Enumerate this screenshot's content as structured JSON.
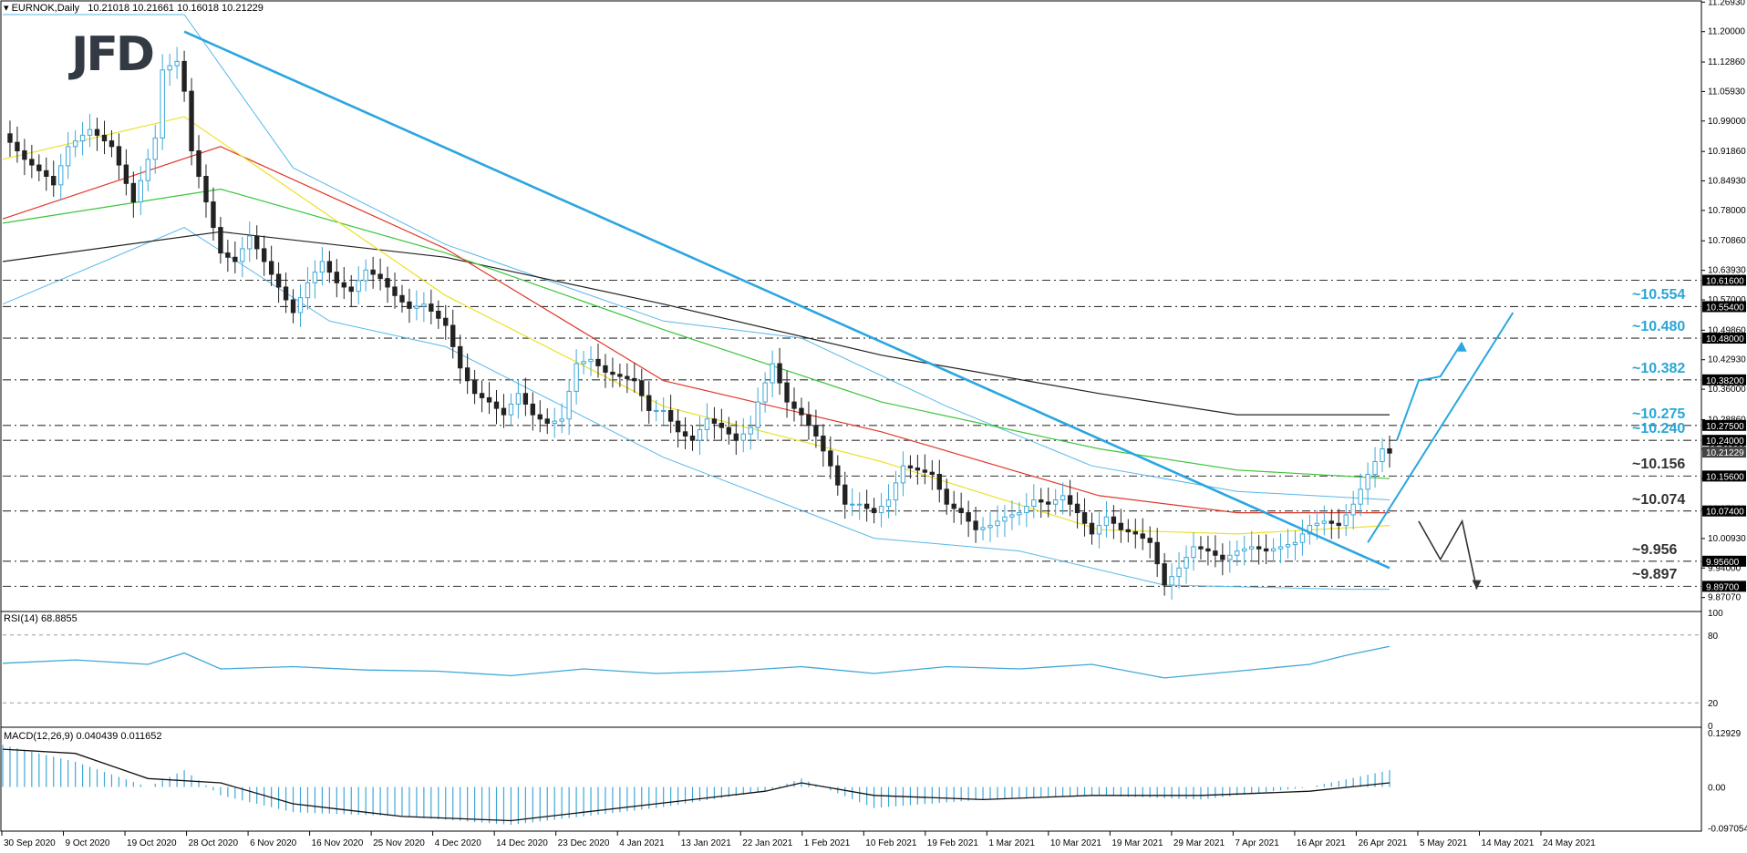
{
  "header": {
    "symbol": "EURNOK,Daily",
    "ohlc": "10.21018 10.21661 10.16018 10.21229",
    "logo": "JFD"
  },
  "rsi_panel": {
    "label": "RSI(14) 68.8855"
  },
  "macd_panel": {
    "label": "MACD(12,26,9) 0.040439 0.011652"
  },
  "level_labels": [
    {
      "text": "~10.554",
      "price": 10.554,
      "color": "#2aa6d6"
    },
    {
      "text": "~10.480",
      "price": 10.48,
      "color": "#2aa6d6"
    },
    {
      "text": "~10.382",
      "price": 10.382,
      "color": "#2aa6d6"
    },
    {
      "text": "~10.275",
      "price": 10.275,
      "color": "#2aa6d6"
    },
    {
      "text": "~10.240",
      "price": 10.24,
      "color": "#2aa6d6"
    },
    {
      "text": "~10.156",
      "price": 10.156,
      "color": "#333333"
    },
    {
      "text": "~10.074",
      "price": 10.074,
      "color": "#333333"
    },
    {
      "text": "~9.956",
      "price": 9.956,
      "color": "#333333"
    },
    {
      "text": "~9.897",
      "price": 9.897,
      "color": "#333333"
    }
  ],
  "chart_data": {
    "type": "line",
    "title": "EURNOK,Daily",
    "ohlc_last": {
      "open": 10.21018,
      "high": 10.21661,
      "low": 10.16018,
      "close": 10.21229
    },
    "price_axis": {
      "ylim": [
        9.84,
        11.27
      ],
      "ticks": [
        "11.26930",
        "11.20000",
        "11.12860",
        "11.05930",
        "10.99000",
        "10.91860",
        "10.84930",
        "10.78000",
        "10.70860",
        "10.63930",
        "10.57000",
        "10.49860",
        "10.42930",
        "10.36000",
        "10.28860",
        "10.21930",
        "10.15000",
        "10.07860",
        "10.00930",
        "9.94000",
        "9.87070"
      ],
      "tick_values": [
        11.2693,
        11.2,
        11.1286,
        11.0593,
        10.99,
        10.9186,
        10.8493,
        10.78,
        10.7086,
        10.6393,
        10.57,
        10.4986,
        10.4293,
        10.36,
        10.2886,
        10.2193,
        10.15,
        10.0786,
        10.0093,
        9.94,
        9.8707
      ]
    },
    "price_flags": [
      {
        "text": "10.61600",
        "value": 10.616,
        "dark": true
      },
      {
        "text": "10.55400",
        "value": 10.554,
        "dark": true
      },
      {
        "text": "10.48000",
        "value": 10.48,
        "dark": true
      },
      {
        "text": "10.38200",
        "value": 10.382,
        "dark": true
      },
      {
        "text": "10.27500",
        "value": 10.275,
        "dark": true
      },
      {
        "text": "10.24000",
        "value": 10.24,
        "dark": true
      },
      {
        "text": "10.21229",
        "value": 10.21229,
        "dark": false
      },
      {
        "text": "10.15600",
        "value": 10.156,
        "dark": true
      },
      {
        "text": "10.07400",
        "value": 10.074,
        "dark": true
      },
      {
        "text": "9.95600",
        "value": 9.956,
        "dark": true
      },
      {
        "text": "9.89700",
        "value": 9.897,
        "dark": true
      }
    ],
    "horizontal_levels": [
      10.616,
      10.554,
      10.48,
      10.382,
      10.275,
      10.24,
      10.156,
      10.074,
      9.956,
      9.897
    ],
    "x_labels": [
      "30 Sep 2020",
      "9 Oct 2020",
      "19 Oct 2020",
      "28 Oct 2020",
      "6 Nov 2020",
      "16 Nov 2020",
      "25 Nov 2020",
      "4 Dec 2020",
      "14 Dec 2020",
      "23 Dec 2020",
      "4 Jan 2021",
      "13 Jan 2021",
      "22 Jan 2021",
      "1 Feb 2021",
      "10 Feb 2021",
      "19 Feb 2021",
      "1 Mar 2021",
      "10 Mar 2021",
      "19 Mar 2021",
      "29 Mar 2021",
      "7 Apr 2021",
      "16 Apr 2021",
      "26 Apr 2021",
      "5 May 2021",
      "14 May 2021",
      "24 May 2021"
    ],
    "close_path": [
      [
        0,
        10.96
      ],
      [
        3,
        10.9
      ],
      [
        6,
        10.86
      ],
      [
        7,
        10.84
      ],
      [
        9,
        10.93
      ],
      [
        12,
        10.97
      ],
      [
        15,
        10.93
      ],
      [
        18,
        10.8
      ],
      [
        21,
        10.95
      ],
      [
        22,
        11.11
      ],
      [
        24,
        11.13
      ],
      [
        25,
        11.06
      ],
      [
        26,
        10.92
      ],
      [
        28,
        10.8
      ],
      [
        30,
        10.68
      ],
      [
        32,
        10.66
      ],
      [
        34,
        10.72
      ],
      [
        36,
        10.66
      ],
      [
        38,
        10.6
      ],
      [
        40,
        10.54
      ],
      [
        42,
        10.61
      ],
      [
        44,
        10.66
      ],
      [
        46,
        10.61
      ],
      [
        48,
        10.59
      ],
      [
        50,
        10.64
      ],
      [
        52,
        10.62
      ],
      [
        54,
        10.58
      ],
      [
        56,
        10.55
      ],
      [
        58,
        10.56
      ],
      [
        61,
        10.51
      ],
      [
        63,
        10.41
      ],
      [
        65,
        10.35
      ],
      [
        67,
        10.33
      ],
      [
        69,
        10.3
      ],
      [
        71,
        10.35
      ],
      [
        73,
        10.3
      ],
      [
        75,
        10.28
      ],
      [
        77,
        10.29
      ],
      [
        79,
        10.42
      ],
      [
        81,
        10.43
      ],
      [
        83,
        10.4
      ],
      [
        85,
        10.39
      ],
      [
        87,
        10.38
      ],
      [
        89,
        10.31
      ],
      [
        91,
        10.31
      ],
      [
        93,
        10.26
      ],
      [
        95,
        10.24
      ],
      [
        97,
        10.29
      ],
      [
        99,
        10.27
      ],
      [
        101,
        10.24
      ],
      [
        103,
        10.27
      ],
      [
        104,
        10.33
      ],
      [
        106,
        10.42
      ],
      [
        108,
        10.33
      ],
      [
        110,
        10.3
      ],
      [
        112,
        10.25
      ],
      [
        114,
        10.18
      ],
      [
        116,
        10.09
      ],
      [
        118,
        10.09
      ],
      [
        120,
        10.07
      ],
      [
        122,
        10.1
      ],
      [
        124,
        10.18
      ],
      [
        126,
        10.17
      ],
      [
        128,
        10.16
      ],
      [
        130,
        10.09
      ],
      [
        132,
        10.07
      ],
      [
        134,
        10.03
      ],
      [
        136,
        10.04
      ],
      [
        138,
        10.06
      ],
      [
        140,
        10.07
      ],
      [
        142,
        10.1
      ],
      [
        144,
        10.09
      ],
      [
        146,
        10.11
      ],
      [
        148,
        10.07
      ],
      [
        150,
        10.02
      ],
      [
        152,
        10.06
      ],
      [
        154,
        10.03
      ],
      [
        156,
        10.02
      ],
      [
        158,
        10.0
      ],
      [
        160,
        9.9
      ],
      [
        162,
        9.94
      ],
      [
        164,
        9.99
      ],
      [
        166,
        9.98
      ],
      [
        168,
        9.96
      ],
      [
        170,
        9.98
      ],
      [
        172,
        9.99
      ],
      [
        174,
        9.98
      ],
      [
        176,
        9.99
      ],
      [
        178,
        10.0
      ],
      [
        180,
        10.04
      ],
      [
        182,
        10.05
      ],
      [
        184,
        10.04
      ],
      [
        186,
        10.09
      ],
      [
        188,
        10.16
      ],
      [
        190,
        10.22
      ],
      [
        191,
        10.21
      ]
    ],
    "sma_200": [
      [
        0,
        10.66
      ],
      [
        30,
        10.73
      ],
      [
        61,
        10.67
      ],
      [
        91,
        10.56
      ],
      [
        121,
        10.44
      ],
      [
        151,
        10.35
      ],
      [
        170,
        10.3
      ],
      [
        191,
        10.3
      ]
    ],
    "sma_100": [
      [
        0,
        10.75
      ],
      [
        30,
        10.83
      ],
      [
        61,
        10.68
      ],
      [
        91,
        10.5
      ],
      [
        121,
        10.33
      ],
      [
        151,
        10.22
      ],
      [
        170,
        10.17
      ],
      [
        191,
        10.15
      ]
    ],
    "sma_50": [
      [
        0,
        10.76
      ],
      [
        30,
        10.93
      ],
      [
        61,
        10.69
      ],
      [
        91,
        10.38
      ],
      [
        121,
        10.26
      ],
      [
        151,
        10.11
      ],
      [
        170,
        10.07
      ],
      [
        191,
        10.07
      ]
    ],
    "sma_20": [
      [
        0,
        10.9
      ],
      [
        25,
        11.0
      ],
      [
        61,
        10.58
      ],
      [
        91,
        10.32
      ],
      [
        121,
        10.19
      ],
      [
        151,
        10.03
      ],
      [
        170,
        10.02
      ],
      [
        191,
        10.04
      ]
    ],
    "bollinger_upper": [
      [
        0,
        11.24
      ],
      [
        25,
        11.24
      ],
      [
        40,
        10.88
      ],
      [
        61,
        10.7
      ],
      [
        91,
        10.52
      ],
      [
        110,
        10.48
      ],
      [
        130,
        10.32
      ],
      [
        150,
        10.18
      ],
      [
        170,
        10.12
      ],
      [
        191,
        10.1
      ]
    ],
    "bollinger_lower": [
      [
        0,
        10.56
      ],
      [
        25,
        10.74
      ],
      [
        45,
        10.52
      ],
      [
        61,
        10.46
      ],
      [
        91,
        10.2
      ],
      [
        120,
        10.01
      ],
      [
        140,
        9.98
      ],
      [
        160,
        9.9
      ],
      [
        185,
        9.89
      ],
      [
        191,
        9.89
      ]
    ],
    "trendline_main": [
      [
        25,
        11.2
      ],
      [
        191,
        9.94
      ]
    ],
    "projection_up": [
      [
        192,
        10.24
      ],
      [
        195,
        10.38
      ],
      [
        198,
        10.39
      ],
      [
        201,
        10.47
      ]
    ],
    "projection_up_line": [
      [
        188,
        10.0
      ],
      [
        208,
        10.54
      ]
    ],
    "projection_down": [
      [
        195,
        10.05
      ],
      [
        198,
        9.96
      ],
      [
        201,
        10.05
      ],
      [
        203,
        9.89
      ]
    ],
    "rsi": {
      "label": "RSI(14) 68.8855",
      "ylim": [
        0,
        100
      ],
      "levels": [
        80,
        20
      ],
      "tick_labels": [
        "100",
        "80",
        "20",
        "0"
      ],
      "tick_values": [
        100,
        80,
        20,
        0
      ],
      "values": [
        [
          0,
          55
        ],
        [
          10,
          58
        ],
        [
          20,
          54
        ],
        [
          25,
          64
        ],
        [
          30,
          50
        ],
        [
          40,
          52
        ],
        [
          50,
          49
        ],
        [
          60,
          48
        ],
        [
          70,
          44
        ],
        [
          80,
          50
        ],
        [
          90,
          46
        ],
        [
          100,
          48
        ],
        [
          110,
          52
        ],
        [
          120,
          46
        ],
        [
          130,
          52
        ],
        [
          140,
          50
        ],
        [
          150,
          54
        ],
        [
          160,
          42
        ],
        [
          170,
          48
        ],
        [
          180,
          54
        ],
        [
          185,
          62
        ],
        [
          191,
          70
        ]
      ]
    },
    "macd": {
      "label": "MACD(12,26,9) 0.040439 0.011652",
      "tick_labels": [
        "0.12929",
        "0.00",
        "-0.097054"
      ],
      "tick_values": [
        0.12929,
        0.0,
        -0.097054
      ],
      "ylim": [
        -0.105,
        0.14
      ],
      "histogram": [
        [
          0,
          0.1
        ],
        [
          10,
          0.06
        ],
        [
          20,
          0.0
        ],
        [
          25,
          0.04
        ],
        [
          30,
          -0.02
        ],
        [
          40,
          -0.06
        ],
        [
          55,
          -0.07
        ],
        [
          70,
          -0.09
        ],
        [
          90,
          -0.05
        ],
        [
          105,
          -0.01
        ],
        [
          110,
          0.02
        ],
        [
          120,
          -0.05
        ],
        [
          135,
          -0.03
        ],
        [
          150,
          -0.02
        ],
        [
          165,
          -0.03
        ],
        [
          180,
          0.0
        ],
        [
          191,
          0.04
        ]
      ],
      "signal": [
        [
          0,
          0.09
        ],
        [
          10,
          0.08
        ],
        [
          20,
          0.02
        ],
        [
          30,
          0.01
        ],
        [
          40,
          -0.04
        ],
        [
          55,
          -0.07
        ],
        [
          70,
          -0.08
        ],
        [
          90,
          -0.04
        ],
        [
          105,
          -0.01
        ],
        [
          110,
          0.01
        ],
        [
          120,
          -0.02
        ],
        [
          135,
          -0.03
        ],
        [
          150,
          -0.02
        ],
        [
          165,
          -0.02
        ],
        [
          180,
          -0.01
        ],
        [
          191,
          0.01
        ]
      ]
    }
  }
}
